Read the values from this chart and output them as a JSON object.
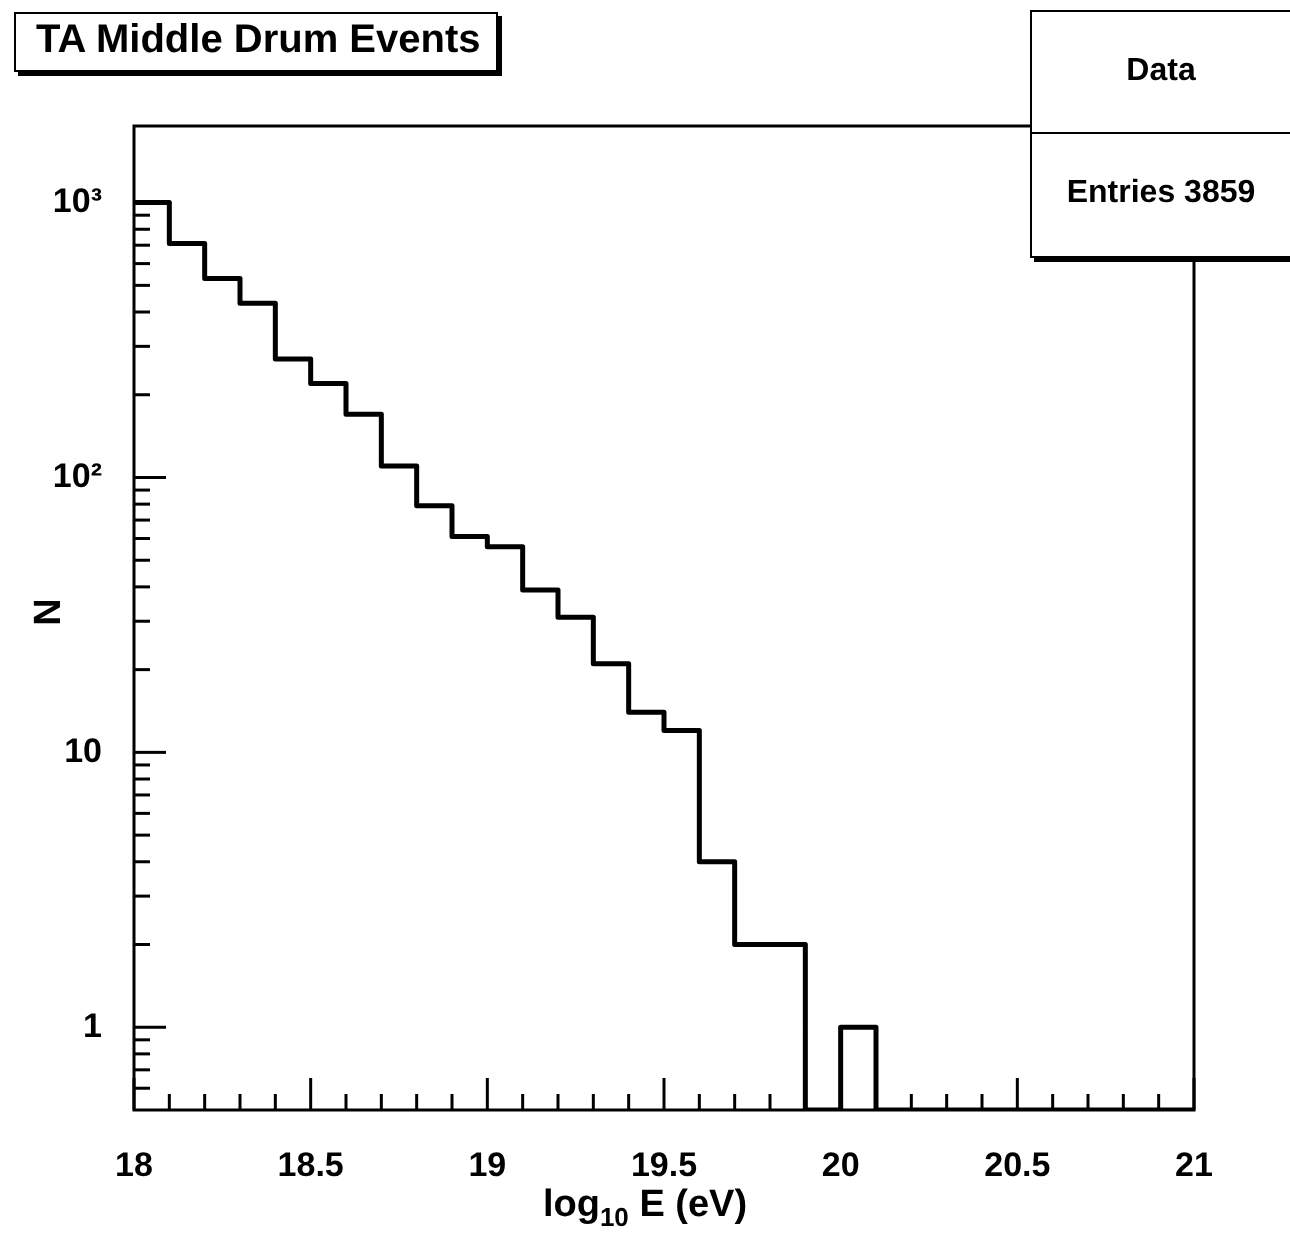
{
  "chart_data": {
    "type": "histogram",
    "title": "TA Middle Drum Events",
    "xlabel": "log$_{10}$ E (eV)",
    "ylabel": "N",
    "annotations": [
      "Data",
      "Entries 3859"
    ],
    "bins": [
      18,
      18.1,
      18.2,
      18.3,
      18.4,
      18.5,
      18.6,
      18.7,
      18.8,
      18.9,
      19,
      19.1,
      19.2,
      19.3,
      19.4,
      19.5,
      19.6,
      19.7,
      19.8,
      19.9,
      20,
      20.1,
      20.2,
      20.3,
      20.4,
      20.5,
      20.6,
      20.7,
      20.8,
      20.9,
      21
    ],
    "values": [
      1000,
      710,
      530,
      430,
      270,
      220,
      170,
      110,
      79,
      61,
      56,
      39,
      31,
      21,
      14,
      12,
      4,
      2,
      2,
      null,
      1,
      null,
      null,
      null,
      null,
      null,
      null,
      null,
      null,
      null
    ],
    "color": "#000000",
    "log": "y",
    "grid": false,
    "legend": false,
    "xlim": [
      18,
      21
    ],
    "xticks": [
      18,
      {
        "value": 18.1,
        "label": null
      },
      {
        "value": 18.2,
        "label": null
      },
      {
        "value": 18.3,
        "label": null
      },
      {
        "value": 18.4,
        "label": null
      },
      18.5,
      {
        "value": 18.6,
        "label": null
      },
      {
        "value": 18.7,
        "label": null
      },
      {
        "value": 18.8,
        "label": null
      },
      {
        "value": 18.9,
        "label": null
      },
      19,
      {
        "value": 19.1,
        "label": null
      },
      {
        "value": 19.2,
        "label": null
      },
      {
        "value": 19.3,
        "label": null
      },
      {
        "value": 19.4,
        "label": null
      },
      19.5,
      {
        "value": 19.6,
        "label": null
      },
      {
        "value": 19.7,
        "label": null
      },
      {
        "value": 19.8,
        "label": null
      },
      {
        "value": 19.9,
        "label": null
      },
      20,
      {
        "value": 20.1,
        "label": null
      },
      {
        "value": 20.2,
        "label": null
      },
      {
        "value": 20.3,
        "label": null
      },
      {
        "value": 20.4,
        "label": null
      },
      20.5,
      {
        "value": 20.6,
        "label": null
      },
      {
        "value": 20.7,
        "label": null
      },
      {
        "value": 20.8,
        "label": null
      },
      {
        "value": 20.9,
        "label": null
      },
      21
    ],
    "ylim": [
      0.5,
      1900
    ],
    "yticks": [
      {
        "value": 0.6,
        "label": null
      },
      {
        "value": 0.7,
        "label": null
      },
      {
        "value": 0.8,
        "label": null
      },
      {
        "value": 0.9,
        "label": null
      },
      1,
      {
        "value": 2,
        "label": null
      },
      {
        "value": 3,
        "label": null
      },
      {
        "value": 4,
        "label": null
      },
      {
        "value": 5,
        "label": null
      },
      {
        "value": 6,
        "label": null
      },
      {
        "value": 7,
        "label": null
      },
      {
        "value": 8,
        "label": null
      },
      {
        "value": 9,
        "label": null
      },
      10,
      {
        "value": 20,
        "label": null
      },
      {
        "value": 30,
        "label": null
      },
      {
        "value": 40,
        "label": null
      },
      {
        "value": 50,
        "label": null
      },
      {
        "value": 60,
        "label": null
      },
      {
        "value": 70,
        "label": null
      },
      {
        "value": 80,
        "label": null
      },
      {
        "value": 90,
        "label": null
      },
      {
        "value": 100,
        "label": "10²"
      },
      {
        "value": 200,
        "label": null
      },
      {
        "value": 300,
        "label": null
      },
      {
        "value": 400,
        "label": null
      },
      {
        "value": 500,
        "label": null
      },
      {
        "value": 600,
        "label": null
      },
      {
        "value": 700,
        "label": null
      },
      {
        "value": 800,
        "label": null
      },
      {
        "value": 900,
        "label": null
      },
      {
        "value": 1000,
        "label": "10³"
      }
    ]
  }
}
